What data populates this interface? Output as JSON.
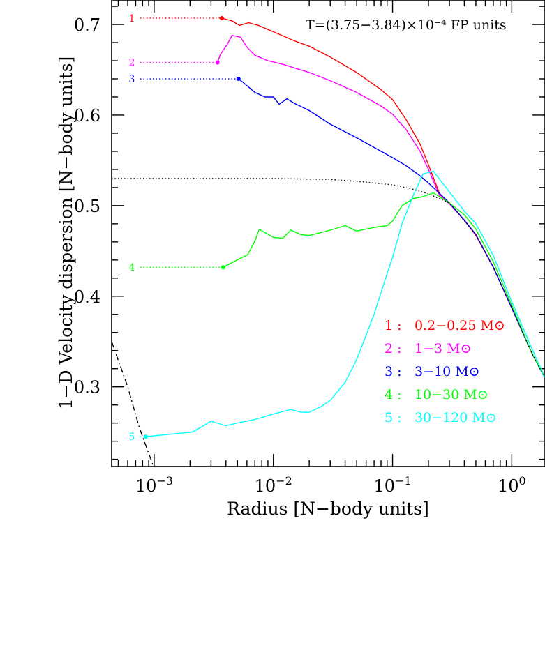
{
  "chart_data": {
    "type": "line",
    "xscale": "log",
    "xlim": [
      0.00044,
      1.9
    ],
    "ylim": [
      0.212,
      0.727
    ],
    "xlabel": "Radius [N−body units]",
    "ylabel": "1−D Velocity dispersion [N−body units]",
    "annotation": "T=(3.75−3.84)×10⁻⁴ FP units",
    "x_ticks": [
      {
        "value": 0.001,
        "base": "10",
        "exp": "−3"
      },
      {
        "value": 0.01,
        "base": "10",
        "exp": "−2"
      },
      {
        "value": 0.1,
        "base": "10",
        "exp": "−1"
      },
      {
        "value": 1,
        "base": "10",
        "exp": "0"
      }
    ],
    "y_ticks": [
      {
        "value": 0.3,
        "label": "0.3"
      },
      {
        "value": 0.4,
        "label": "0.4"
      },
      {
        "value": 0.5,
        "label": "0.5"
      },
      {
        "value": 0.6,
        "label": "0.6"
      },
      {
        "value": 0.7,
        "label": "0.7"
      }
    ],
    "series": [
      {
        "id": "1",
        "name": "0.2−0.25 M⊙",
        "color": "#ff0000",
        "marker": {
          "x": 0.0037,
          "y": 0.707,
          "label_x": 0.00065
        },
        "points": [
          [
            0.0037,
            0.707
          ],
          [
            0.0045,
            0.704
          ],
          [
            0.0052,
            0.699
          ],
          [
            0.0062,
            0.702
          ],
          [
            0.0075,
            0.699
          ],
          [
            0.01,
            0.692
          ],
          [
            0.015,
            0.682
          ],
          [
            0.02,
            0.676
          ],
          [
            0.03,
            0.664
          ],
          [
            0.05,
            0.647
          ],
          [
            0.08,
            0.628
          ],
          [
            0.1,
            0.617
          ],
          [
            0.13,
            0.595
          ],
          [
            0.17,
            0.568
          ],
          [
            0.2,
            0.545
          ],
          [
            0.25,
            0.512
          ],
          [
            0.3,
            0.503
          ],
          [
            0.4,
            0.484
          ],
          [
            0.5,
            0.467
          ],
          [
            0.7,
            0.432
          ],
          [
            1.0,
            0.387
          ],
          [
            1.5,
            0.335
          ],
          [
            1.9,
            0.31
          ]
        ]
      },
      {
        "id": "2",
        "name": "1−3 M⊙",
        "color": "#ff00ff",
        "marker": {
          "x": 0.0034,
          "y": 0.658,
          "label_x": 0.00065
        },
        "points": [
          [
            0.0034,
            0.658
          ],
          [
            0.0036,
            0.667
          ],
          [
            0.0041,
            0.678
          ],
          [
            0.0045,
            0.688
          ],
          [
            0.0053,
            0.686
          ],
          [
            0.006,
            0.675
          ],
          [
            0.007,
            0.666
          ],
          [
            0.009,
            0.66
          ],
          [
            0.012,
            0.656
          ],
          [
            0.02,
            0.647
          ],
          [
            0.03,
            0.638
          ],
          [
            0.05,
            0.625
          ],
          [
            0.08,
            0.61
          ],
          [
            0.1,
            0.601
          ],
          [
            0.13,
            0.584
          ],
          [
            0.17,
            0.56
          ],
          [
            0.2,
            0.54
          ],
          [
            0.25,
            0.51
          ],
          [
            0.3,
            0.502
          ],
          [
            0.4,
            0.484
          ],
          [
            0.5,
            0.468
          ],
          [
            0.7,
            0.432
          ],
          [
            1.0,
            0.387
          ],
          [
            1.5,
            0.335
          ],
          [
            1.9,
            0.31
          ]
        ]
      },
      {
        "id": "3",
        "name": "3−10 M⊙",
        "color": "#0000ff",
        "marker": {
          "x": 0.0051,
          "y": 0.64,
          "label_x": 0.00065
        },
        "points": [
          [
            0.0051,
            0.64
          ],
          [
            0.0057,
            0.635
          ],
          [
            0.007,
            0.625
          ],
          [
            0.0085,
            0.62
          ],
          [
            0.01,
            0.62
          ],
          [
            0.0112,
            0.612
          ],
          [
            0.013,
            0.618
          ],
          [
            0.015,
            0.613
          ],
          [
            0.02,
            0.605
          ],
          [
            0.03,
            0.59
          ],
          [
            0.05,
            0.575
          ],
          [
            0.08,
            0.56
          ],
          [
            0.1,
            0.553
          ],
          [
            0.13,
            0.544
          ],
          [
            0.17,
            0.533
          ],
          [
            0.2,
            0.525
          ],
          [
            0.25,
            0.513
          ],
          [
            0.3,
            0.503
          ],
          [
            0.4,
            0.484
          ],
          [
            0.5,
            0.468
          ],
          [
            0.7,
            0.432
          ],
          [
            1.0,
            0.387
          ],
          [
            1.5,
            0.335
          ],
          [
            1.9,
            0.31
          ]
        ]
      },
      {
        "id": "4",
        "name": "10−30 M⊙",
        "color": "#00ff00",
        "marker": {
          "x": 0.0038,
          "y": 0.432,
          "label_x": 0.00065
        },
        "points": [
          [
            0.0038,
            0.432
          ],
          [
            0.0061,
            0.446
          ],
          [
            0.007,
            0.461
          ],
          [
            0.0076,
            0.474
          ],
          [
            0.01,
            0.465
          ],
          [
            0.012,
            0.464
          ],
          [
            0.014,
            0.473
          ],
          [
            0.017,
            0.468
          ],
          [
            0.02,
            0.467
          ],
          [
            0.03,
            0.473
          ],
          [
            0.04,
            0.478
          ],
          [
            0.05,
            0.472
          ],
          [
            0.07,
            0.476
          ],
          [
            0.09,
            0.478
          ],
          [
            0.1,
            0.483
          ],
          [
            0.12,
            0.5
          ],
          [
            0.15,
            0.508
          ],
          [
            0.18,
            0.51
          ],
          [
            0.22,
            0.514
          ],
          [
            0.3,
            0.503
          ],
          [
            0.4,
            0.49
          ],
          [
            0.5,
            0.474
          ],
          [
            0.7,
            0.438
          ],
          [
            1.0,
            0.39
          ],
          [
            1.5,
            0.335
          ],
          [
            1.9,
            0.31
          ]
        ]
      },
      {
        "id": "5",
        "name": "30−120 M⊙",
        "color": "#00ffff",
        "marker": {
          "x": 0.00085,
          "y": 0.245,
          "label_x": 0.00065
        },
        "points": [
          [
            0.00085,
            0.245
          ],
          [
            0.0021,
            0.25
          ],
          [
            0.003,
            0.262
          ],
          [
            0.004,
            0.257
          ],
          [
            0.005,
            0.26
          ],
          [
            0.007,
            0.264
          ],
          [
            0.01,
            0.27
          ],
          [
            0.014,
            0.275
          ],
          [
            0.017,
            0.272
          ],
          [
            0.02,
            0.272
          ],
          [
            0.025,
            0.278
          ],
          [
            0.03,
            0.285
          ],
          [
            0.04,
            0.305
          ],
          [
            0.05,
            0.33
          ],
          [
            0.07,
            0.38
          ],
          [
            0.09,
            0.425
          ],
          [
            0.1,
            0.443
          ],
          [
            0.12,
            0.48
          ],
          [
            0.15,
            0.512
          ],
          [
            0.18,
            0.535
          ],
          [
            0.22,
            0.538
          ],
          [
            0.3,
            0.515
          ],
          [
            0.4,
            0.494
          ],
          [
            0.5,
            0.48
          ],
          [
            0.7,
            0.445
          ],
          [
            1.0,
            0.394
          ],
          [
            1.5,
            0.34
          ],
          [
            1.9,
            0.31
          ]
        ]
      },
      {
        "id": "ref-dotted",
        "name": "",
        "color": "#000000",
        "dash": "dotted",
        "points": [
          [
            0.00044,
            0.53
          ],
          [
            0.01,
            0.53
          ],
          [
            0.03,
            0.529
          ],
          [
            0.06,
            0.526
          ],
          [
            0.1,
            0.523
          ],
          [
            0.15,
            0.518
          ],
          [
            0.2,
            0.513
          ],
          [
            0.3,
            0.503
          ],
          [
            0.5,
            0.468
          ],
          [
            0.7,
            0.432
          ],
          [
            1.0,
            0.387
          ],
          [
            1.5,
            0.335
          ],
          [
            1.9,
            0.31
          ]
        ]
      },
      {
        "id": "ref-dashdot",
        "name": "",
        "color": "#000000",
        "dash": "dashdot",
        "points": [
          [
            0.00044,
            0.35
          ],
          [
            0.0006,
            0.3
          ],
          [
            0.00075,
            0.255
          ],
          [
            0.001,
            0.21
          ]
        ]
      }
    ]
  }
}
